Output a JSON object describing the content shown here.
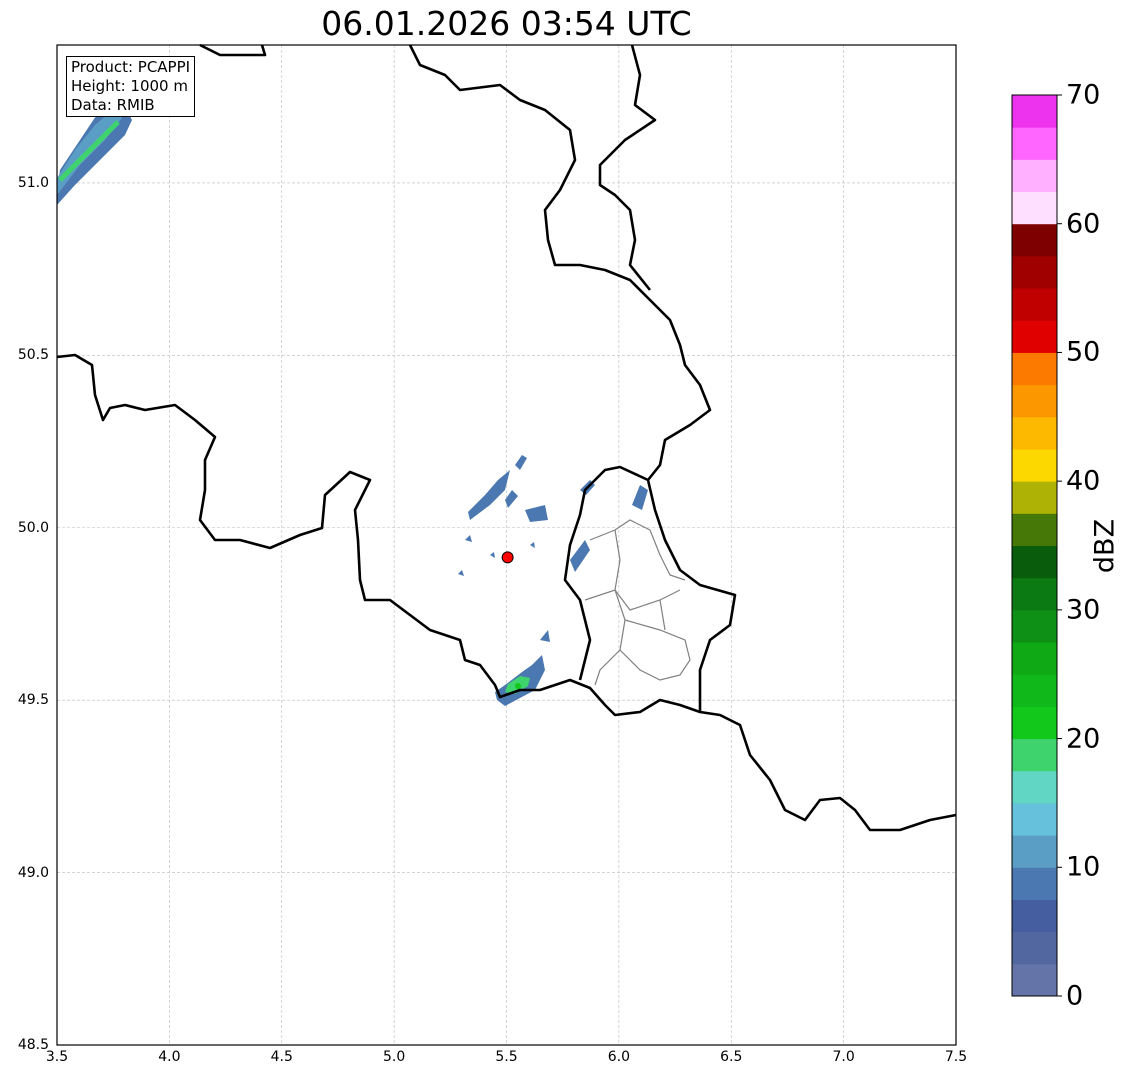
{
  "title": "06.01.2026 03:54 UTC",
  "info_box": [
    "Product: PCAPPI",
    "Height: 1000 m",
    "Data: RMIB"
  ],
  "x_ticks": [
    "3.5",
    "4.0",
    "4.5",
    "5.0",
    "5.5",
    "6.0",
    "6.5",
    "7.0",
    "7.5"
  ],
  "y_ticks": [
    "48.5",
    "49.0",
    "49.5",
    "50.0",
    "50.5",
    "51.0"
  ],
  "colorbar": {
    "label": "dBZ",
    "ticks": [
      "0",
      "10",
      "20",
      "30",
      "40",
      "50",
      "60",
      "70"
    ],
    "range": [
      0,
      70
    ],
    "step": 2.5,
    "colors": [
      "#6574a8",
      "#52669f",
      "#445ea0",
      "#4b78b0",
      "#5a9ec5",
      "#66c2dc",
      "#62d6c4",
      "#3fd36e",
      "#11c81b",
      "#10b81a",
      "#0fa916",
      "#0d9015",
      "#0c7a12",
      "#095c0c",
      "#467807",
      "#adb204",
      "#fdd800",
      "#fdb900",
      "#fd9700",
      "#fd7a00",
      "#e00000",
      "#c00000",
      "#a00000",
      "#7e0000",
      "#ffdfff",
      "#ffb0ff",
      "#ff66ff",
      "#ee33ee"
    ]
  },
  "map": {
    "lon_range": [
      3.5,
      7.5
    ],
    "lat_range": [
      48.5,
      51.4
    ],
    "radar_site": {
      "lon": 5.505,
      "lat": 49.914,
      "color": "#ff0000"
    }
  }
}
